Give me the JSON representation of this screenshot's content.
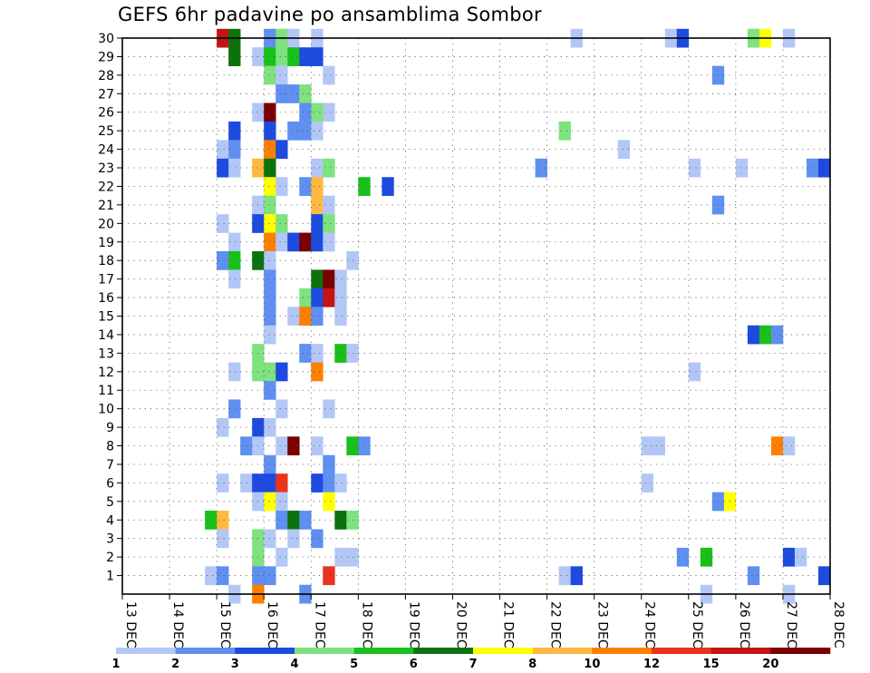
{
  "chart_data": {
    "type": "heatmap",
    "title": "GEFS 6hr padavine po ansamblima Sombor",
    "x_tick_labels": [
      "13 DEC",
      "14 DEC",
      "15 DEC",
      "16 DEC",
      "17 DEC",
      "18 DEC",
      "19 DEC",
      "20 DEC",
      "21 DEC",
      "22 DEC",
      "23 DEC",
      "24 DEC",
      "25 DEC",
      "26 DEC",
      "27 DEC",
      "28 DEC"
    ],
    "y_tick_labels": [
      "1",
      "2",
      "3",
      "4",
      "5",
      "6",
      "7",
      "8",
      "9",
      "10",
      "11",
      "12",
      "13",
      "14",
      "15",
      "16",
      "17",
      "18",
      "19",
      "20",
      "21",
      "22",
      "23",
      "24",
      "25",
      "26",
      "27",
      "28",
      "29",
      "30"
    ],
    "x_range_days": [
      13,
      28
    ],
    "y_range": [
      0,
      30
    ],
    "steps_per_day": 4,
    "grid": true,
    "legend_position": "bottom",
    "color_scale": {
      "colors": [
        "#b3c7f7",
        "#5f8ff0",
        "#1d4be0",
        "#7ee27e",
        "#19c019",
        "#0c720c",
        "#ffff00",
        "#ffb840",
        "#ff7f00",
        "#e8341c",
        "#c41414",
        "#7a0000"
      ],
      "labels": [
        "1",
        "2",
        "3",
        "4",
        "5",
        "6",
        "7",
        "8",
        "10",
        "12",
        "15",
        "20"
      ]
    },
    "cells": [
      {
        "member": 30,
        "day": 15,
        "step": 0,
        "level": 10
      },
      {
        "member": 30,
        "day": 15,
        "step": 1,
        "level": 5
      },
      {
        "member": 30,
        "day": 16,
        "step": 0,
        "level": 1
      },
      {
        "member": 30,
        "day": 16,
        "step": 1,
        "level": 3
      },
      {
        "member": 30,
        "day": 16,
        "step": 2,
        "level": 0
      },
      {
        "member": 30,
        "day": 17,
        "step": 0,
        "level": 0
      },
      {
        "member": 30,
        "day": 22,
        "step": 2,
        "level": 0
      },
      {
        "member": 30,
        "day": 24,
        "step": 2,
        "level": 0
      },
      {
        "member": 30,
        "day": 24,
        "step": 3,
        "level": 2
      },
      {
        "member": 30,
        "day": 26,
        "step": 1,
        "level": 3
      },
      {
        "member": 30,
        "day": 26,
        "step": 2,
        "level": 6
      },
      {
        "member": 30,
        "day": 27,
        "step": 0,
        "level": 0
      },
      {
        "member": 29,
        "day": 15,
        "step": 1,
        "level": 5
      },
      {
        "member": 29,
        "day": 15,
        "step": 3,
        "level": 0
      },
      {
        "member": 29,
        "day": 16,
        "step": 0,
        "level": 4
      },
      {
        "member": 29,
        "day": 16,
        "step": 1,
        "level": 3
      },
      {
        "member": 29,
        "day": 16,
        "step": 2,
        "level": 4
      },
      {
        "member": 29,
        "day": 16,
        "step": 3,
        "level": 2
      },
      {
        "member": 29,
        "day": 17,
        "step": 0,
        "level": 2
      },
      {
        "member": 28,
        "day": 16,
        "step": 0,
        "level": 3
      },
      {
        "member": 28,
        "day": 16,
        "step": 1,
        "level": 0
      },
      {
        "member": 28,
        "day": 17,
        "step": 1,
        "level": 0
      },
      {
        "member": 28,
        "day": 25,
        "step": 2,
        "level": 1
      },
      {
        "member": 27,
        "day": 16,
        "step": 1,
        "level": 1
      },
      {
        "member": 27,
        "day": 16,
        "step": 2,
        "level": 1
      },
      {
        "member": 27,
        "day": 16,
        "step": 3,
        "level": 3
      },
      {
        "member": 26,
        "day": 15,
        "step": 3,
        "level": 0
      },
      {
        "member": 26,
        "day": 16,
        "step": 0,
        "level": 11
      },
      {
        "member": 26,
        "day": 16,
        "step": 3,
        "level": 1
      },
      {
        "member": 26,
        "day": 17,
        "step": 0,
        "level": 3
      },
      {
        "member": 26,
        "day": 17,
        "step": 1,
        "level": 0
      },
      {
        "member": 25,
        "day": 15,
        "step": 1,
        "level": 2
      },
      {
        "member": 25,
        "day": 16,
        "step": 0,
        "level": 2
      },
      {
        "member": 25,
        "day": 16,
        "step": 2,
        "level": 1
      },
      {
        "member": 25,
        "day": 16,
        "step": 3,
        "level": 1
      },
      {
        "member": 25,
        "day": 17,
        "step": 0,
        "level": 0
      },
      {
        "member": 25,
        "day": 22,
        "step": 1,
        "level": 3
      },
      {
        "member": 24,
        "day": 15,
        "step": 0,
        "level": 0
      },
      {
        "member": 24,
        "day": 15,
        "step": 1,
        "level": 1
      },
      {
        "member": 24,
        "day": 16,
        "step": 0,
        "level": 8
      },
      {
        "member": 24,
        "day": 16,
        "step": 1,
        "level": 2
      },
      {
        "member": 24,
        "day": 23,
        "step": 2,
        "level": 0
      },
      {
        "member": 23,
        "day": 15,
        "step": 0,
        "level": 2
      },
      {
        "member": 23,
        "day": 15,
        "step": 1,
        "level": 0
      },
      {
        "member": 23,
        "day": 15,
        "step": 3,
        "level": 7
      },
      {
        "member": 23,
        "day": 16,
        "step": 0,
        "level": 5
      },
      {
        "member": 23,
        "day": 17,
        "step": 0,
        "level": 0
      },
      {
        "member": 23,
        "day": 17,
        "step": 1,
        "level": 3
      },
      {
        "member": 23,
        "day": 21,
        "step": 3,
        "level": 1
      },
      {
        "member": 23,
        "day": 25,
        "step": 0,
        "level": 0
      },
      {
        "member": 23,
        "day": 26,
        "step": 0,
        "level": 0
      },
      {
        "member": 23,
        "day": 27,
        "step": 2,
        "level": 1
      },
      {
        "member": 23,
        "day": 27,
        "step": 3,
        "level": 2
      },
      {
        "member": 22,
        "day": 16,
        "step": 0,
        "level": 6
      },
      {
        "member": 22,
        "day": 16,
        "step": 1,
        "level": 0
      },
      {
        "member": 22,
        "day": 16,
        "step": 3,
        "level": 1
      },
      {
        "member": 22,
        "day": 17,
        "step": 0,
        "level": 7
      },
      {
        "member": 22,
        "day": 18,
        "step": 0,
        "level": 4
      },
      {
        "member": 22,
        "day": 18,
        "step": 2,
        "level": 2
      },
      {
        "member": 21,
        "day": 15,
        "step": 3,
        "level": 0
      },
      {
        "member": 21,
        "day": 16,
        "step": 0,
        "level": 3
      },
      {
        "member": 21,
        "day": 17,
        "step": 0,
        "level": 7
      },
      {
        "member": 21,
        "day": 17,
        "step": 1,
        "level": 0
      },
      {
        "member": 21,
        "day": 25,
        "step": 2,
        "level": 1
      },
      {
        "member": 20,
        "day": 15,
        "step": 0,
        "level": 0
      },
      {
        "member": 20,
        "day": 15,
        "step": 3,
        "level": 2
      },
      {
        "member": 20,
        "day": 16,
        "step": 0,
        "level": 6
      },
      {
        "member": 20,
        "day": 16,
        "step": 1,
        "level": 3
      },
      {
        "member": 20,
        "day": 17,
        "step": 0,
        "level": 2
      },
      {
        "member": 20,
        "day": 17,
        "step": 1,
        "level": 3
      },
      {
        "member": 19,
        "day": 15,
        "step": 1,
        "level": 0
      },
      {
        "member": 19,
        "day": 16,
        "step": 0,
        "level": 8
      },
      {
        "member": 19,
        "day": 16,
        "step": 1,
        "level": 0
      },
      {
        "member": 19,
        "day": 16,
        "step": 2,
        "level": 2
      },
      {
        "member": 19,
        "day": 16,
        "step": 3,
        "level": 11
      },
      {
        "member": 19,
        "day": 17,
        "step": 0,
        "level": 2
      },
      {
        "member": 19,
        "day": 17,
        "step": 1,
        "level": 0
      },
      {
        "member": 18,
        "day": 15,
        "step": 0,
        "level": 1
      },
      {
        "member": 18,
        "day": 15,
        "step": 1,
        "level": 4
      },
      {
        "member": 18,
        "day": 15,
        "step": 3,
        "level": 5
      },
      {
        "member": 18,
        "day": 16,
        "step": 0,
        "level": 0
      },
      {
        "member": 18,
        "day": 17,
        "step": 3,
        "level": 0
      },
      {
        "member": 17,
        "day": 15,
        "step": 1,
        "level": 0
      },
      {
        "member": 17,
        "day": 16,
        "step": 0,
        "level": 1
      },
      {
        "member": 17,
        "day": 17,
        "step": 0,
        "level": 5
      },
      {
        "member": 17,
        "day": 17,
        "step": 1,
        "level": 11
      },
      {
        "member": 17,
        "day": 17,
        "step": 2,
        "level": 0
      },
      {
        "member": 16,
        "day": 16,
        "step": 0,
        "level": 1
      },
      {
        "member": 16,
        "day": 16,
        "step": 3,
        "level": 3
      },
      {
        "member": 16,
        "day": 17,
        "step": 0,
        "level": 2
      },
      {
        "member": 16,
        "day": 17,
        "step": 1,
        "level": 10
      },
      {
        "member": 16,
        "day": 17,
        "step": 2,
        "level": 0
      },
      {
        "member": 15,
        "day": 16,
        "step": 0,
        "level": 1
      },
      {
        "member": 15,
        "day": 16,
        "step": 2,
        "level": 0
      },
      {
        "member": 15,
        "day": 16,
        "step": 3,
        "level": 8
      },
      {
        "member": 15,
        "day": 17,
        "step": 0,
        "level": 1
      },
      {
        "member": 15,
        "day": 17,
        "step": 2,
        "level": 0
      },
      {
        "member": 14,
        "day": 16,
        "step": 0,
        "level": 0
      },
      {
        "member": 14,
        "day": 26,
        "step": 1,
        "level": 2
      },
      {
        "member": 14,
        "day": 26,
        "step": 2,
        "level": 4
      },
      {
        "member": 14,
        "day": 26,
        "step": 3,
        "level": 1
      },
      {
        "member": 13,
        "day": 15,
        "step": 3,
        "level": 3
      },
      {
        "member": 13,
        "day": 16,
        "step": 3,
        "level": 1
      },
      {
        "member": 13,
        "day": 17,
        "step": 0,
        "level": 0
      },
      {
        "member": 13,
        "day": 17,
        "step": 2,
        "level": 4
      },
      {
        "member": 13,
        "day": 17,
        "step": 3,
        "level": 0
      },
      {
        "member": 12,
        "day": 15,
        "step": 1,
        "level": 0
      },
      {
        "member": 12,
        "day": 15,
        "step": 3,
        "level": 3
      },
      {
        "member": 12,
        "day": 16,
        "step": 0,
        "level": 3
      },
      {
        "member": 12,
        "day": 16,
        "step": 1,
        "level": 2
      },
      {
        "member": 12,
        "day": 17,
        "step": 0,
        "level": 8
      },
      {
        "member": 12,
        "day": 25,
        "step": 0,
        "level": 0
      },
      {
        "member": 11,
        "day": 16,
        "step": 0,
        "level": 1
      },
      {
        "member": 10,
        "day": 15,
        "step": 1,
        "level": 1
      },
      {
        "member": 10,
        "day": 16,
        "step": 1,
        "level": 0
      },
      {
        "member": 10,
        "day": 17,
        "step": 1,
        "level": 0
      },
      {
        "member": 9,
        "day": 15,
        "step": 0,
        "level": 0
      },
      {
        "member": 9,
        "day": 15,
        "step": 3,
        "level": 2
      },
      {
        "member": 9,
        "day": 16,
        "step": 0,
        "level": 0
      },
      {
        "member": 8,
        "day": 15,
        "step": 2,
        "level": 1
      },
      {
        "member": 8,
        "day": 15,
        "step": 3,
        "level": 0
      },
      {
        "member": 8,
        "day": 16,
        "step": 1,
        "level": 0
      },
      {
        "member": 8,
        "day": 16,
        "step": 2,
        "level": 11
      },
      {
        "member": 8,
        "day": 17,
        "step": 0,
        "level": 0
      },
      {
        "member": 8,
        "day": 17,
        "step": 3,
        "level": 4
      },
      {
        "member": 8,
        "day": 18,
        "step": 0,
        "level": 1
      },
      {
        "member": 8,
        "day": 24,
        "step": 0,
        "level": 0
      },
      {
        "member": 8,
        "day": 24,
        "step": 1,
        "level": 0
      },
      {
        "member": 8,
        "day": 26,
        "step": 3,
        "level": 8
      },
      {
        "member": 8,
        "day": 27,
        "step": 0,
        "level": 0
      },
      {
        "member": 7,
        "day": 16,
        "step": 0,
        "level": 1
      },
      {
        "member": 7,
        "day": 17,
        "step": 1,
        "level": 1
      },
      {
        "member": 6,
        "day": 15,
        "step": 0,
        "level": 0
      },
      {
        "member": 6,
        "day": 15,
        "step": 2,
        "level": 0
      },
      {
        "member": 6,
        "day": 15,
        "step": 3,
        "level": 2
      },
      {
        "member": 6,
        "day": 16,
        "step": 0,
        "level": 2
      },
      {
        "member": 6,
        "day": 16,
        "step": 1,
        "level": 9
      },
      {
        "member": 6,
        "day": 17,
        "step": 0,
        "level": 2
      },
      {
        "member": 6,
        "day": 17,
        "step": 1,
        "level": 1
      },
      {
        "member": 6,
        "day": 17,
        "step": 2,
        "level": 0
      },
      {
        "member": 6,
        "day": 24,
        "step": 0,
        "level": 0
      },
      {
        "member": 5,
        "day": 15,
        "step": 3,
        "level": 0
      },
      {
        "member": 5,
        "day": 16,
        "step": 0,
        "level": 6
      },
      {
        "member": 5,
        "day": 16,
        "step": 1,
        "level": 0
      },
      {
        "member": 5,
        "day": 17,
        "step": 1,
        "level": 6
      },
      {
        "member": 5,
        "day": 25,
        "step": 2,
        "level": 1
      },
      {
        "member": 5,
        "day": 25,
        "step": 3,
        "level": 6
      },
      {
        "member": 4,
        "day": 14,
        "step": 3,
        "level": 4
      },
      {
        "member": 4,
        "day": 15,
        "step": 0,
        "level": 7
      },
      {
        "member": 4,
        "day": 16,
        "step": 1,
        "level": 1
      },
      {
        "member": 4,
        "day": 16,
        "step": 2,
        "level": 5
      },
      {
        "member": 4,
        "day": 16,
        "step": 3,
        "level": 1
      },
      {
        "member": 4,
        "day": 17,
        "step": 2,
        "level": 5
      },
      {
        "member": 4,
        "day": 17,
        "step": 3,
        "level": 3
      },
      {
        "member": 3,
        "day": 15,
        "step": 0,
        "level": 0
      },
      {
        "member": 3,
        "day": 15,
        "step": 3,
        "level": 3
      },
      {
        "member": 3,
        "day": 16,
        "step": 0,
        "level": 0
      },
      {
        "member": 3,
        "day": 16,
        "step": 2,
        "level": 0
      },
      {
        "member": 3,
        "day": 17,
        "step": 0,
        "level": 1
      },
      {
        "member": 2,
        "day": 15,
        "step": 3,
        "level": 3
      },
      {
        "member": 2,
        "day": 16,
        "step": 1,
        "level": 0
      },
      {
        "member": 2,
        "day": 17,
        "step": 2,
        "level": 0
      },
      {
        "member": 2,
        "day": 17,
        "step": 3,
        "level": 0
      },
      {
        "member": 2,
        "day": 24,
        "step": 3,
        "level": 1
      },
      {
        "member": 2,
        "day": 25,
        "step": 1,
        "level": 4
      },
      {
        "member": 2,
        "day": 27,
        "step": 0,
        "level": 2
      },
      {
        "member": 2,
        "day": 27,
        "step": 1,
        "level": 0
      },
      {
        "member": 1,
        "day": 14,
        "step": 3,
        "level": 0
      },
      {
        "member": 1,
        "day": 15,
        "step": 0,
        "level": 1
      },
      {
        "member": 1,
        "day": 15,
        "step": 3,
        "level": 1
      },
      {
        "member": 1,
        "day": 16,
        "step": 0,
        "level": 1
      },
      {
        "member": 1,
        "day": 17,
        "step": 1,
        "level": 9
      },
      {
        "member": 1,
        "day": 22,
        "step": 1,
        "level": 0
      },
      {
        "member": 1,
        "day": 22,
        "step": 2,
        "level": 2
      },
      {
        "member": 1,
        "day": 26,
        "step": 1,
        "level": 1
      },
      {
        "member": 1,
        "day": 27,
        "step": 3,
        "level": 2
      },
      {
        "member": 0,
        "day": 15,
        "step": 1,
        "level": 0
      },
      {
        "member": 0,
        "day": 15,
        "step": 3,
        "level": 8
      },
      {
        "member": 0,
        "day": 16,
        "step": 3,
        "level": 1
      },
      {
        "member": 0,
        "day": 25,
        "step": 1,
        "level": 0
      },
      {
        "member": 0,
        "day": 27,
        "step": 0,
        "level": 0
      }
    ]
  }
}
